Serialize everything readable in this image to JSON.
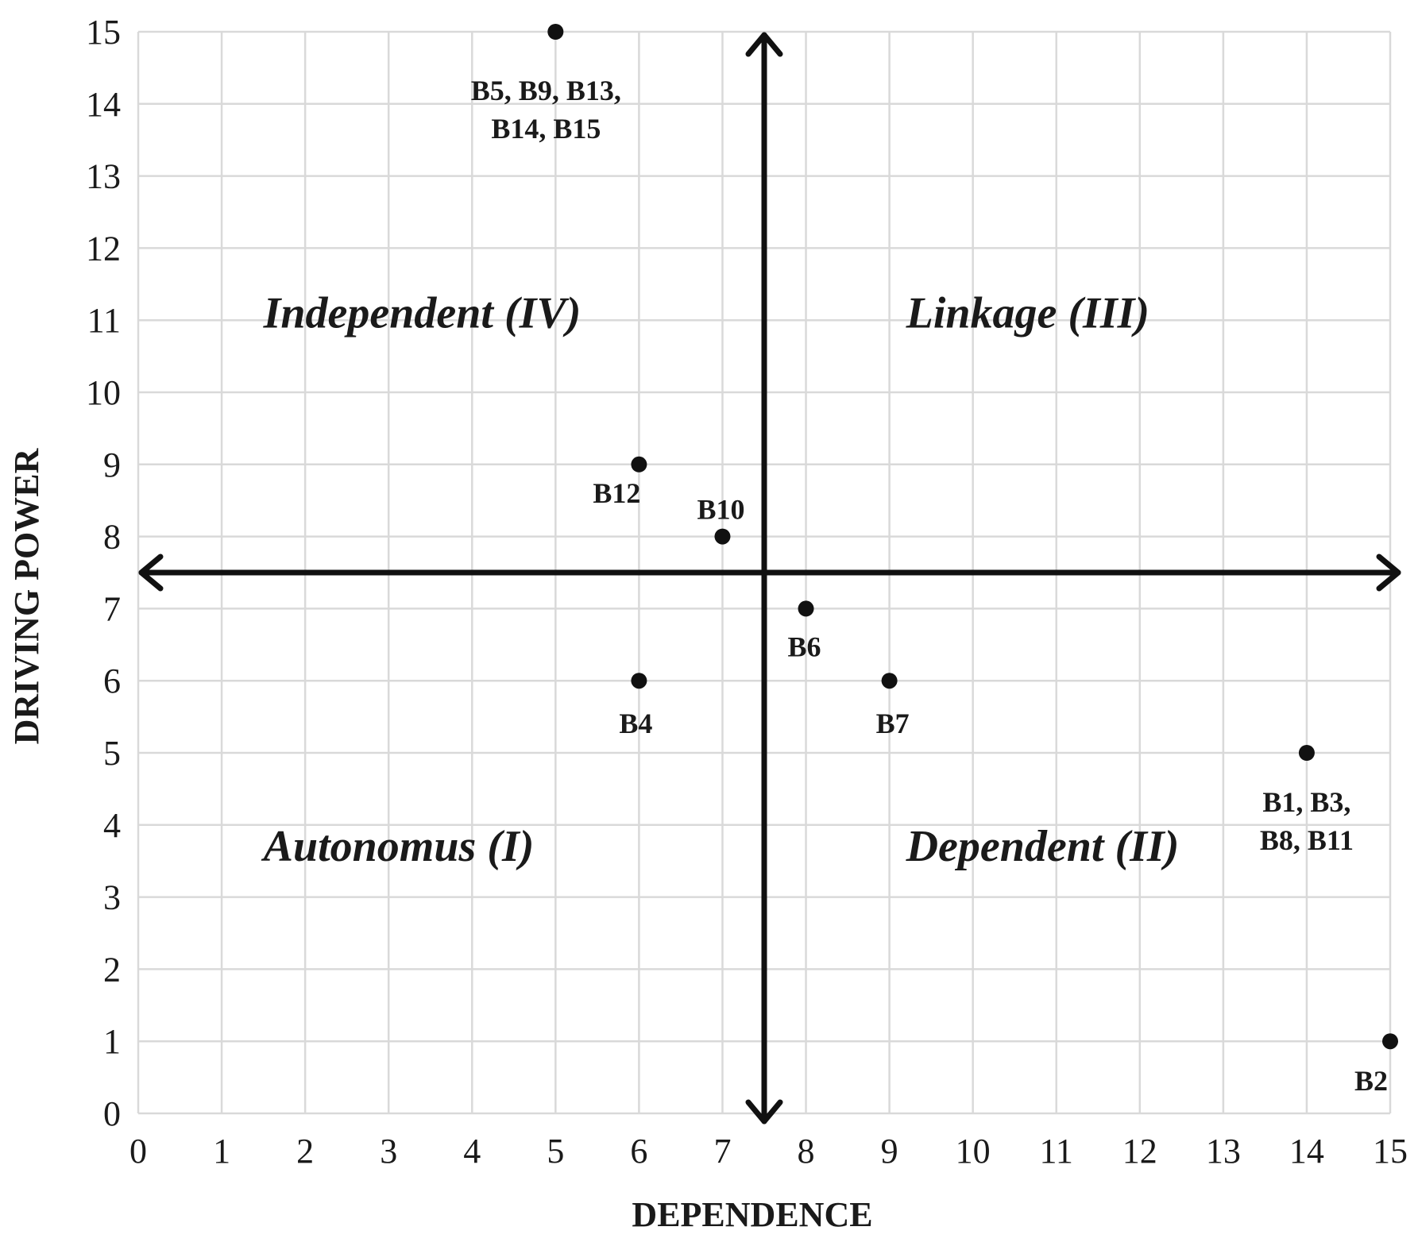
{
  "chart_data": {
    "type": "scatter",
    "title": "",
    "xlabel": "DEPENDENCE",
    "ylabel": "DRIVING POWER",
    "xlim": [
      0,
      15
    ],
    "ylim": [
      0,
      15
    ],
    "xticks": [
      0,
      1,
      2,
      3,
      4,
      5,
      6,
      7,
      8,
      9,
      10,
      11,
      12,
      13,
      14,
      15
    ],
    "yticks": [
      0,
      1,
      2,
      3,
      4,
      5,
      6,
      7,
      8,
      9,
      10,
      11,
      12,
      13,
      14,
      15
    ],
    "grid": true,
    "divider": {
      "x": 7.5,
      "y": 7.5
    },
    "points": [
      {
        "x": 5,
        "y": 15,
        "label_lines": [
          "B5, B9, B13,",
          "B14, B15"
        ]
      },
      {
        "x": 6,
        "y": 9,
        "label_lines": [
          "B12"
        ]
      },
      {
        "x": 7,
        "y": 8,
        "label_lines": [
          "B10"
        ]
      },
      {
        "x": 8,
        "y": 7,
        "label_lines": [
          "B6"
        ]
      },
      {
        "x": 6,
        "y": 6,
        "label_lines": [
          "B4"
        ]
      },
      {
        "x": 9,
        "y": 6,
        "label_lines": [
          "B7"
        ]
      },
      {
        "x": 14,
        "y": 5,
        "label_lines": [
          "B1, B3,",
          "B8, B11"
        ]
      },
      {
        "x": 15,
        "y": 1,
        "label_lines": [
          "B2"
        ]
      }
    ],
    "quadrants": [
      {
        "name": "Independent (IV)",
        "position": "top-left"
      },
      {
        "name": "Linkage (III)",
        "position": "top-right"
      },
      {
        "name": "Autonomus (I)",
        "position": "bottom-left"
      },
      {
        "name": "Dependent (II)",
        "position": "bottom-right"
      }
    ]
  }
}
